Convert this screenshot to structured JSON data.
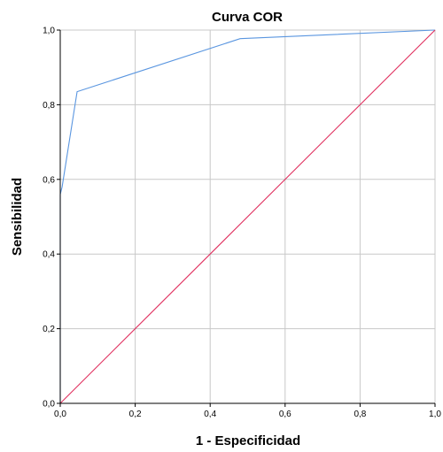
{
  "chart_data": {
    "type": "line",
    "title": "Curva COR",
    "xlabel": "1 - Especificidad",
    "ylabel": "Sensibilidad",
    "xlim": [
      0,
      1
    ],
    "ylim": [
      0,
      1
    ],
    "x_ticks": [
      "0,0",
      "0,2",
      "0,4",
      "0,6",
      "0,8",
      "1,0"
    ],
    "y_ticks": [
      "0,0",
      "0,2",
      "0,4",
      "0,6",
      "0,8",
      "1,0"
    ],
    "grid": true,
    "legend": "none",
    "series": [
      {
        "color": "#5a96e0",
        "x": [
          0.0,
          0.0,
          0.005,
          0.045,
          0.48,
          1.0
        ],
        "y": [
          0.0,
          0.56,
          0.58,
          0.835,
          0.977,
          1.0
        ]
      },
      {
        "color": "#e0305f",
        "x": [
          0.0,
          1.0
        ],
        "y": [
          0.0,
          1.0
        ]
      }
    ]
  }
}
